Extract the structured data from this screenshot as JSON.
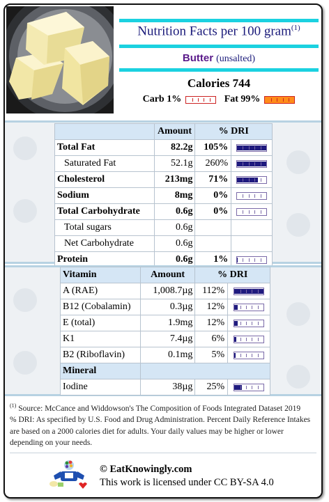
{
  "header": {
    "title": "Nutrition Facts per 100 gram",
    "title_sup": "(1)",
    "product_name": "Butter",
    "product_qualifier": "(unsalted)",
    "calories_label": "Calories 744",
    "macros": [
      {
        "label": "Carb 1%",
        "fraction": 0.01,
        "color": "#ffffff"
      },
      {
        "label": "Fat 99%",
        "fraction": 0.99,
        "color": "#ff8c1a"
      }
    ]
  },
  "nutrients": {
    "headers": [
      "",
      "Amount",
      "% DRI"
    ],
    "rows": [
      {
        "name": "Total Fat",
        "amount": "82.2g",
        "dri": "105%",
        "dri_value": 105,
        "bold": true,
        "indent": false,
        "bar": true
      },
      {
        "name": "Saturated Fat",
        "amount": "52.1g",
        "dri": "260%",
        "dri_value": 260,
        "bold": false,
        "indent": true,
        "bar": true
      },
      {
        "name": "Cholesterol",
        "amount": "213mg",
        "dri": "71%",
        "dri_value": 71,
        "bold": true,
        "indent": false,
        "bar": true
      },
      {
        "name": "Sodium",
        "amount": "8mg",
        "dri": "0%",
        "dri_value": 0,
        "bold": true,
        "indent": false,
        "bar": true
      },
      {
        "name": "Total Carbohydrate",
        "amount": "0.6g",
        "dri": "0%",
        "dri_value": 0,
        "bold": true,
        "indent": false,
        "bar": true
      },
      {
        "name": "Total sugars",
        "amount": "0.6g",
        "dri": "",
        "dri_value": null,
        "bold": false,
        "indent": true,
        "bar": false
      },
      {
        "name": "Net Carbohydrate",
        "amount": "0.6g",
        "dri": "",
        "dri_value": null,
        "bold": false,
        "indent": true,
        "bar": false
      },
      {
        "name": "Protein",
        "amount": "0.6g",
        "dri": "1%",
        "dri_value": 1,
        "bold": true,
        "indent": false,
        "bar": true
      }
    ]
  },
  "vitamins": {
    "headers": [
      "Vitamin",
      "Amount",
      "% DRI"
    ],
    "rows": [
      {
        "name": "A (RAE)",
        "amount": "1,008.7µg",
        "dri": "112%",
        "dri_value": 112
      },
      {
        "name": "B12 (Cobalamin)",
        "amount": "0.3µg",
        "dri": "12%",
        "dri_value": 12
      },
      {
        "name": "E (total)",
        "amount": "1.9mg",
        "dri": "12%",
        "dri_value": 12
      },
      {
        "name": "K1",
        "amount": "7.4µg",
        "dri": "6%",
        "dri_value": 6
      },
      {
        "name": "B2 (Riboflavin)",
        "amount": "0.1mg",
        "dri": "5%",
        "dri_value": 5
      }
    ],
    "mineral_header": "Mineral",
    "minerals": [
      {
        "name": "Iodine",
        "amount": "38µg",
        "dri": "25%",
        "dri_value": 25
      }
    ]
  },
  "footnote": {
    "sup": "(1)",
    "source": "Source: McCance and Widdowson's The Composition of Foods Integrated Dataset 2019",
    "dri_note": "% DRI: As specified by U.S. Food and Drug Administration. Percent Daily Reference Intakes are based on a 2000 calories diet for adults. Your daily values may be higher or lower depending on your needs."
  },
  "footer": {
    "site": "© EatKnowingly.com",
    "license": "This work is licensed under CC BY-SA 4.0"
  },
  "colors": {
    "accent_cyan": "#1bd1e0",
    "title_navy": "#1a1a7a",
    "product_purple": "#5a1a8a",
    "bar_fill": "#1f1a7e",
    "fat_orange": "#ff8c1a",
    "section_blue": "#b7d2e2"
  }
}
